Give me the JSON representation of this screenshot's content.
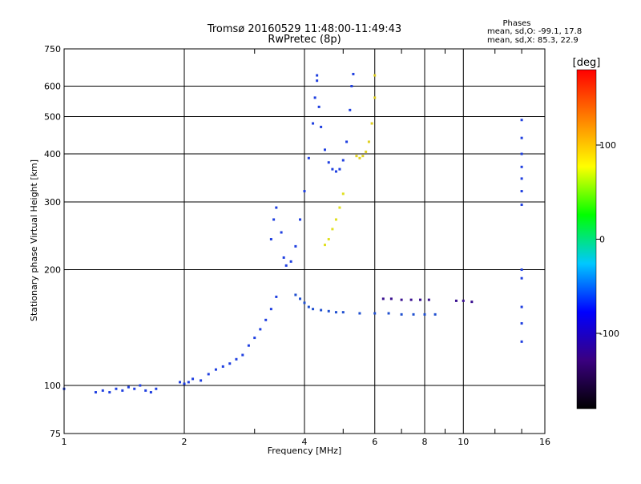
{
  "chart_data": {
    "type": "scatter",
    "title": "Tromsø 20160529 11:48:00-11:49:43",
    "subtitle": "RwPretec (8p)",
    "xlabel": "Frequency [MHz]",
    "ylabel": "Stationary phase Virtual Height [km]",
    "x_scale": "log",
    "y_scale": "log",
    "xlim": [
      1,
      16
    ],
    "ylim": [
      75,
      750
    ],
    "x_ticks": [
      1,
      2,
      4,
      6,
      8,
      10,
      16
    ],
    "y_ticks": [
      75,
      100,
      200,
      300,
      400,
      500,
      600,
      750
    ],
    "x_major_grid": [
      2,
      4,
      6,
      8,
      10
    ],
    "y_major_grid": [
      100,
      200,
      300,
      400,
      500,
      600
    ],
    "x_minor_ticks": [
      3,
      5,
      7,
      9,
      12,
      14
    ],
    "grid": true,
    "phase_info": {
      "title": "Phases",
      "line_o": "mean, sd,O: -99.1, 17.8",
      "line_x": "mean, sd,X:  85.3, 22.9"
    },
    "colorbar": {
      "label": "[deg]",
      "range": [
        -180,
        180
      ],
      "ticks": [
        100,
        0,
        -100
      ],
      "colors": [
        "#000000",
        "#3a0080",
        "#0000ff",
        "#00c8ff",
        "#00ff00",
        "#ffff00",
        "#ff8000",
        "#ff0000"
      ]
    },
    "traces": [
      {
        "name": "",
        "phase": -100,
        "color": "#1f3fe0",
        "points": [
          [
            1.0,
            98
          ],
          [
            1.2,
            96
          ],
          [
            1.25,
            97
          ],
          [
            1.3,
            96
          ],
          [
            1.35,
            98
          ],
          [
            1.4,
            97
          ],
          [
            1.45,
            99
          ],
          [
            1.5,
            98
          ],
          [
            1.55,
            100
          ],
          [
            1.6,
            97
          ],
          [
            1.65,
            96
          ],
          [
            1.7,
            98
          ]
        ]
      },
      {
        "name": "",
        "phase": -100,
        "color": "#1f3fe0",
        "points": [
          [
            1.95,
            102
          ],
          [
            2.0,
            101
          ],
          [
            2.05,
            102
          ],
          [
            2.1,
            104
          ],
          [
            2.2,
            103
          ],
          [
            2.3,
            107
          ],
          [
            2.4,
            110
          ],
          [
            2.5,
            112
          ],
          [
            2.6,
            114
          ],
          [
            2.7,
            117
          ],
          [
            2.8,
            120
          ],
          [
            2.9,
            127
          ],
          [
            3.0,
            133
          ],
          [
            3.1,
            140
          ],
          [
            3.2,
            148
          ],
          [
            3.3,
            158
          ],
          [
            3.4,
            170
          ]
        ]
      },
      {
        "name": "",
        "phase": -100,
        "color": "#1f3fe0",
        "points": [
          [
            3.3,
            240
          ],
          [
            3.35,
            270
          ],
          [
            3.4,
            290
          ],
          [
            3.5,
            250
          ],
          [
            3.55,
            215
          ],
          [
            3.6,
            205
          ],
          [
            3.7,
            210
          ],
          [
            3.8,
            230
          ],
          [
            3.9,
            270
          ],
          [
            4.0,
            320
          ],
          [
            4.1,
            390
          ],
          [
            4.2,
            480
          ],
          [
            4.25,
            560
          ],
          [
            4.3,
            640
          ]
        ]
      },
      {
        "name": "",
        "phase": -100,
        "color": "#1f3fe0",
        "points": [
          [
            4.3,
            620
          ],
          [
            4.35,
            530
          ],
          [
            4.4,
            470
          ],
          [
            4.5,
            410
          ],
          [
            4.6,
            380
          ],
          [
            4.7,
            365
          ],
          [
            4.8,
            360
          ],
          [
            4.9,
            365
          ],
          [
            5.0,
            385
          ],
          [
            5.1,
            430
          ],
          [
            5.2,
            520
          ],
          [
            5.25,
            600
          ],
          [
            5.3,
            645
          ]
        ]
      },
      {
        "name": "",
        "phase": -100,
        "color": "#2050d0",
        "points": [
          [
            3.8,
            172
          ],
          [
            3.9,
            168
          ],
          [
            4.0,
            164
          ],
          [
            4.1,
            160
          ],
          [
            4.2,
            158
          ],
          [
            4.4,
            157
          ],
          [
            4.6,
            156
          ],
          [
            4.8,
            155
          ],
          [
            5.0,
            155
          ],
          [
            5.5,
            154
          ],
          [
            6.0,
            154
          ],
          [
            6.5,
            154
          ],
          [
            7.0,
            153
          ],
          [
            7.5,
            153
          ],
          [
            8.0,
            153
          ],
          [
            8.5,
            153
          ]
        ]
      },
      {
        "name": "",
        "phase": -100,
        "color": "#3a1090",
        "points": [
          [
            6.3,
            168
          ],
          [
            6.6,
            168
          ],
          [
            7.0,
            167
          ],
          [
            7.4,
            167
          ],
          [
            7.8,
            167
          ],
          [
            8.2,
            167
          ],
          [
            9.6,
            166
          ],
          [
            10.0,
            166
          ],
          [
            10.5,
            165
          ]
        ]
      },
      {
        "name": "",
        "phase": 80,
        "color": "#e0e020",
        "points": [
          [
            4.5,
            232
          ],
          [
            4.6,
            240
          ],
          [
            4.7,
            255
          ],
          [
            4.8,
            270
          ],
          [
            4.9,
            290
          ],
          [
            5.0,
            315
          ]
        ]
      },
      {
        "name": "",
        "phase": 90,
        "color": "#e0d020",
        "points": [
          [
            5.4,
            395
          ],
          [
            5.5,
            390
          ],
          [
            5.6,
            395
          ],
          [
            5.7,
            405
          ],
          [
            5.8,
            430
          ],
          [
            5.9,
            480
          ],
          [
            6.0,
            560
          ],
          [
            6.0,
            640
          ]
        ]
      },
      {
        "name": "",
        "phase": -110,
        "color": "#1f3fe0",
        "points": [
          [
            14.0,
            490
          ],
          [
            14.0,
            440
          ],
          [
            14.0,
            400
          ],
          [
            14.0,
            370
          ],
          [
            14.0,
            345
          ],
          [
            14.0,
            320
          ],
          [
            14.0,
            295
          ],
          [
            14.0,
            200
          ],
          [
            14.0,
            190
          ],
          [
            14.0,
            160
          ],
          [
            14.0,
            145
          ],
          [
            14.0,
            130
          ]
        ]
      }
    ]
  }
}
